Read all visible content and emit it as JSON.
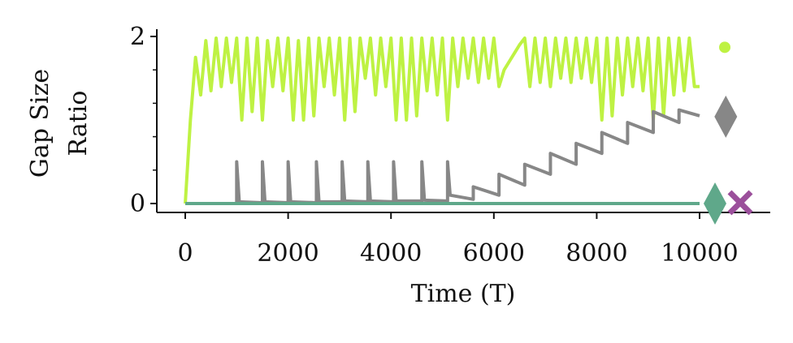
{
  "chart_data": {
    "type": "line",
    "xlabel": "Time (T)",
    "ylabel": [
      "Gap Size",
      "Ratio"
    ],
    "xlim": [
      -553,
      11374
    ],
    "ylim": [
      -0.107,
      2.087
    ],
    "xticks": [
      0,
      2000,
      4000,
      6000,
      8000,
      10000
    ],
    "yticks": [
      0,
      2
    ],
    "yminor_ticks": [
      0.4,
      0.8,
      1.2,
      1.6
    ],
    "series": [
      {
        "color": "#bef243",
        "x": [
          0,
          100,
          200,
          300,
          400,
          500,
          600,
          700,
          800,
          900,
          1000,
          1100,
          1200,
          1300,
          1400,
          1500,
          1600,
          1700,
          1800,
          1900,
          2000,
          2100,
          2200,
          2300,
          2400,
          2500,
          2600,
          2700,
          2800,
          2900,
          3000,
          3100,
          3200,
          3300,
          3400,
          3500,
          3600,
          3700,
          3800,
          3900,
          4000,
          4100,
          4200,
          4300,
          4400,
          4500,
          4600,
          4700,
          4800,
          4900,
          5000,
          5100,
          5200,
          5300,
          5400,
          5500,
          5600,
          5700,
          5800,
          5900,
          6000,
          6100,
          6200,
          6300,
          6400,
          6500,
          6600,
          6700,
          6800,
          6900,
          7000,
          7100,
          7200,
          7300,
          7400,
          7500,
          7600,
          7700,
          7800,
          7900,
          8000,
          8100,
          8200,
          8300,
          8400,
          8500,
          8600,
          8700,
          8800,
          8900,
          9000,
          9100,
          9200,
          9300,
          9400,
          9500,
          9600,
          9700,
          9800,
          9900,
          10000
        ],
        "values": [
          0,
          1.0,
          1.75,
          1.3,
          1.95,
          1.35,
          1.98,
          1.4,
          1.98,
          1.45,
          1.98,
          1.0,
          1.98,
          1.1,
          1.98,
          1.0,
          1.95,
          1.4,
          1.98,
          1.35,
          1.98,
          1.0,
          1.95,
          1.0,
          1.98,
          1.05,
          1.98,
          1.4,
          1.98,
          1.3,
          1.98,
          1.0,
          1.98,
          1.1,
          1.98,
          1.5,
          1.98,
          1.3,
          1.98,
          1.4,
          1.98,
          1.0,
          1.98,
          1.0,
          1.98,
          1.05,
          1.98,
          1.35,
          1.98,
          1.3,
          1.98,
          1.0,
          1.98,
          1.4,
          1.98,
          1.5,
          1.98,
          1.45,
          1.98,
          1.5,
          1.98,
          1.4,
          1.6,
          1.7,
          1.8,
          1.9,
          1.98,
          1.4,
          1.98,
          1.45,
          1.98,
          1.4,
          1.98,
          1.5,
          1.98,
          1.45,
          1.98,
          1.5,
          1.98,
          1.45,
          1.98,
          1.0,
          1.98,
          1.05,
          1.98,
          1.3,
          1.98,
          1.4,
          1.98,
          1.35,
          1.98,
          1.0,
          1.98,
          1.05,
          1.98,
          1.3,
          1.98,
          1.35,
          1.98,
          1.4,
          1.4
        ]
      },
      {
        "color": "#878787",
        "x": [
          0,
          1000,
          1000,
          1050,
          1500,
          1500,
          1550,
          2000,
          2000,
          2050,
          2550,
          2550,
          2600,
          3050,
          3050,
          3100,
          3550,
          3550,
          3600,
          4050,
          4050,
          4100,
          4600,
          4600,
          4650,
          5100,
          5100,
          5150,
          5600,
          5600,
          6100,
          6100,
          6600,
          6600,
          7100,
          7100,
          7600,
          7600,
          8100,
          8100,
          8600,
          8600,
          9100,
          9100,
          9600,
          9600,
          10000
        ],
        "values": [
          0,
          0,
          0.5,
          0.02,
          0.01,
          0.5,
          0.02,
          0.01,
          0.5,
          0.02,
          0.01,
          0.5,
          0.02,
          0.02,
          0.5,
          0.03,
          0.02,
          0.5,
          0.03,
          0.02,
          0.5,
          0.03,
          0.03,
          0.5,
          0.04,
          0.03,
          0.5,
          0.1,
          0.05,
          0.2,
          0.1,
          0.35,
          0.22,
          0.47,
          0.35,
          0.6,
          0.47,
          0.72,
          0.6,
          0.85,
          0.72,
          0.97,
          0.85,
          1.1,
          0.97,
          1.12,
          1.05
        ]
      },
      {
        "color": "#5fa88a",
        "x": [
          0,
          10000
        ],
        "values": [
          0,
          0
        ]
      }
    ],
    "markers": [
      {
        "shape": "circle",
        "color": "#bef243",
        "x": 10490,
        "y": 1.87
      },
      {
        "shape": "diamond",
        "color": "#878787",
        "x": 10510,
        "y": 1.04
      },
      {
        "shape": "diamond",
        "color": "#5fa88a",
        "x": 10300,
        "y": 0
      },
      {
        "shape": "cross",
        "color": "#9b4f9b",
        "x": 10790,
        "y": 0.01
      }
    ]
  }
}
